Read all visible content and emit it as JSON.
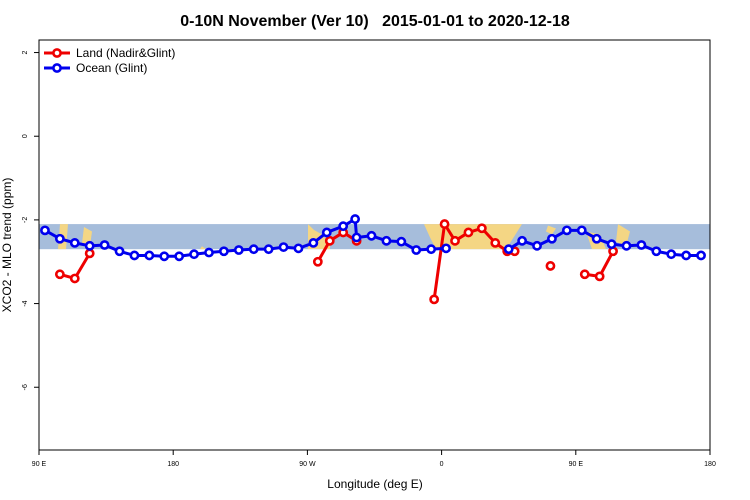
{
  "chart_data": {
    "type": "line",
    "title": "0-10N November (Ver 10)   2015-01-01 to 2020-12-18",
    "xlabel": "Longitude (deg E)",
    "ylabel": "XCO2 - MLO trend (ppm)",
    "xlim": [
      90,
      540
    ],
    "ylim": [
      -7.5,
      2.3
    ],
    "x_tick_values": [
      90,
      180,
      270,
      360,
      450,
      540
    ],
    "x_tick_labels": [
      "90 E",
      "180",
      "90 W",
      "0",
      "90 E",
      "180"
    ],
    "y_tick_values": [
      2,
      0,
      -2,
      -4,
      -6
    ],
    "y_tick_labels": [
      "2",
      "0",
      "-2",
      "-4",
      "-6"
    ],
    "grid": false,
    "legend_position": "top-left",
    "map_band": {
      "y_range": [
        -2.7,
        -2.1
      ],
      "ocean_color": "#a6bddb",
      "land_color": "#fdd87a"
    },
    "series": [
      {
        "name": "Land (Nadir&Glint)",
        "color": "#ee0000",
        "points": [
          [
            104,
            -3.3
          ],
          [
            114,
            -3.4
          ],
          [
            124,
            -2.8
          ],
          null,
          [
            277,
            -3.0
          ],
          [
            285,
            -2.5
          ],
          [
            294,
            -2.3
          ],
          [
            303,
            -2.5
          ],
          null,
          [
            355,
            -3.9
          ],
          [
            362,
            -2.1
          ],
          [
            369,
            -2.5
          ],
          [
            378,
            -2.3
          ],
          [
            387,
            -2.2
          ],
          [
            396,
            -2.55
          ],
          [
            404,
            -2.75
          ],
          [
            409,
            -2.75
          ],
          null,
          [
            433,
            -3.1
          ],
          null,
          [
            456,
            -3.3
          ],
          [
            466,
            -3.35
          ],
          [
            475,
            -2.75
          ]
        ]
      },
      {
        "name": "Ocean (Glint)",
        "color": "#0000ee",
        "points": [
          [
            94,
            -2.25
          ],
          [
            104,
            -2.45
          ],
          [
            114,
            -2.55
          ],
          [
            124,
            -2.62
          ],
          [
            134,
            -2.6
          ],
          [
            144,
            -2.75
          ],
          [
            154,
            -2.85
          ],
          [
            164,
            -2.85
          ],
          [
            174,
            -2.87
          ],
          [
            184,
            -2.87
          ],
          [
            194,
            -2.82
          ],
          [
            204,
            -2.78
          ],
          [
            214,
            -2.75
          ],
          [
            224,
            -2.72
          ],
          [
            234,
            -2.7
          ],
          [
            244,
            -2.7
          ],
          [
            254,
            -2.65
          ],
          [
            264,
            -2.68
          ],
          [
            274,
            -2.55
          ],
          [
            283,
            -2.3
          ],
          [
            294,
            -2.15
          ],
          [
            302,
            -1.98
          ],
          [
            303,
            -2.42
          ],
          [
            313,
            -2.38
          ],
          [
            323,
            -2.5
          ],
          [
            333,
            -2.52
          ],
          [
            343,
            -2.72
          ],
          [
            353,
            -2.7
          ],
          [
            363,
            -2.68
          ],
          null,
          [
            405,
            -2.7
          ],
          [
            414,
            -2.5
          ],
          [
            424,
            -2.62
          ],
          [
            434,
            -2.45
          ],
          [
            444,
            -2.25
          ],
          [
            454,
            -2.25
          ],
          [
            464,
            -2.45
          ],
          [
            474,
            -2.58
          ],
          [
            484,
            -2.62
          ],
          [
            494,
            -2.6
          ],
          [
            504,
            -2.75
          ],
          [
            514,
            -2.82
          ],
          [
            524,
            -2.85
          ],
          [
            534,
            -2.85
          ]
        ]
      }
    ]
  }
}
